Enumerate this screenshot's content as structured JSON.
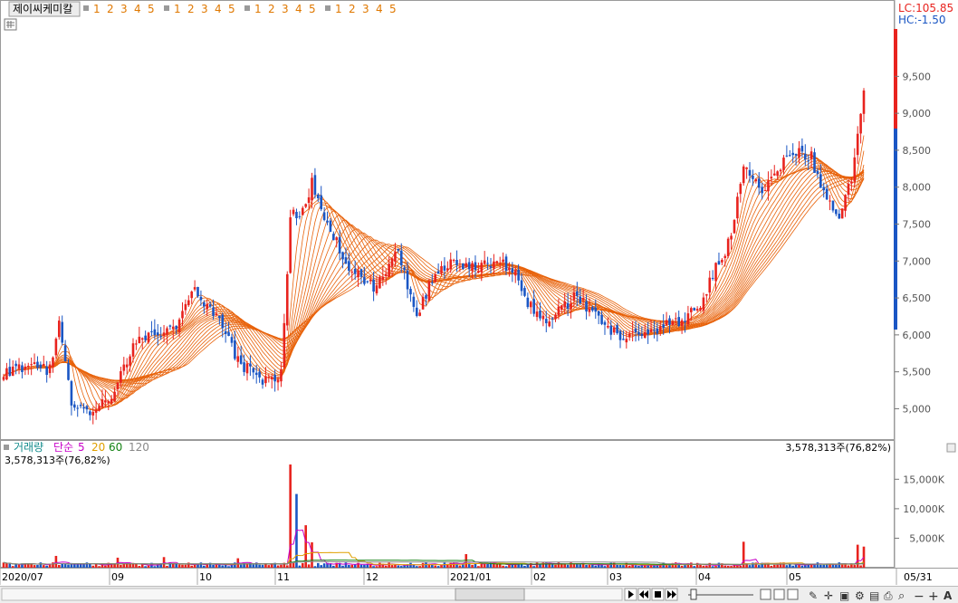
{
  "header": {
    "stock_name": "제이씨케미칼",
    "indicator_groups": [
      [
        "1",
        "2",
        "3",
        "4",
        "5"
      ],
      [
        "1",
        "2",
        "3",
        "4",
        "5"
      ],
      [
        "1",
        "2",
        "3",
        "4",
        "5"
      ],
      [
        "1",
        "2",
        "3",
        "4",
        "5"
      ]
    ],
    "lc_label": "LC:105.85",
    "hc_label": "HC:-1.50"
  },
  "volume_panel": {
    "title": "거래량",
    "ma_label": "단순",
    "ma_periods": [
      "5",
      "20",
      "60",
      "120"
    ],
    "current_left": "3,578,313주(76,82%)",
    "current_right": "3,578,313주(76,82%)"
  },
  "colors": {
    "up": "#e8231e",
    "down": "#1a56c4",
    "ribbon": "#e8620a",
    "ma5": "#c800c8",
    "ma20": "#e0a000",
    "ma60": "#148214",
    "ma120": "#888888",
    "lc": "#e8231e",
    "hc": "#1a56c4"
  },
  "chart_data": {
    "type": "candlestick",
    "price_axis": {
      "ticks": [
        5000,
        5500,
        6000,
        6500,
        7000,
        7500,
        8000,
        8500,
        9000,
        9500
      ],
      "tick_labels": [
        "5,000",
        "5,500",
        "6,000",
        "6,500",
        "7,000",
        "7,500",
        "8,000",
        "8,500",
        "9,000",
        "9,500"
      ],
      "range": [
        4650,
        10350
      ]
    },
    "volume_axis": {
      "ticks": [
        5000000,
        10000000,
        15000000
      ],
      "tick_labels": [
        "5,000K",
        "10,000K",
        "15,000K"
      ],
      "range": [
        0,
        19500000
      ]
    },
    "x_labels": [
      "2020/07",
      "09",
      "10",
      "11",
      "12",
      "2021/01",
      "02",
      "03",
      "04",
      "05",
      "05/31"
    ],
    "anchors": [
      [
        0,
        5500
      ],
      [
        10,
        5560
      ],
      [
        15,
        5520
      ],
      [
        18,
        6250
      ],
      [
        22,
        5000
      ],
      [
        28,
        4920
      ],
      [
        35,
        5200
      ],
      [
        43,
        5900
      ],
      [
        55,
        6050
      ],
      [
        62,
        6600
      ],
      [
        70,
        6200
      ],
      [
        76,
        5650
      ],
      [
        83,
        5400
      ],
      [
        90,
        5450
      ],
      [
        93,
        7600
      ],
      [
        98,
        7700
      ],
      [
        100,
        8100
      ],
      [
        105,
        7500
      ],
      [
        112,
        6900
      ],
      [
        120,
        6650
      ],
      [
        128,
        7150
      ],
      [
        134,
        6250
      ],
      [
        140,
        6850
      ],
      [
        146,
        7050
      ],
      [
        152,
        6900
      ],
      [
        160,
        7000
      ],
      [
        166,
        6900
      ],
      [
        170,
        6450
      ],
      [
        175,
        6200
      ],
      [
        180,
        6300
      ],
      [
        186,
        6550
      ],
      [
        190,
        6350
      ],
      [
        196,
        6100
      ],
      [
        202,
        5950
      ],
      [
        208,
        6050
      ],
      [
        214,
        6100
      ],
      [
        220,
        6200
      ],
      [
        226,
        6450
      ],
      [
        231,
        6900
      ],
      [
        236,
        7300
      ],
      [
        240,
        8300
      ],
      [
        246,
        7900
      ],
      [
        250,
        8200
      ],
      [
        256,
        8500
      ],
      [
        262,
        8400
      ],
      [
        266,
        7900
      ],
      [
        271,
        7650
      ],
      [
        275,
        8100
      ],
      [
        279,
        9300
      ]
    ],
    "volume_spikes": [
      [
        17,
        2000000
      ],
      [
        37,
        1700000
      ],
      [
        52,
        1800000
      ],
      [
        76,
        1600000
      ],
      [
        93,
        17500000
      ],
      [
        95,
        12500000
      ],
      [
        98,
        7200000
      ],
      [
        100,
        4300000
      ],
      [
        150,
        2300000
      ],
      [
        240,
        4400000
      ],
      [
        277,
        3900000
      ],
      [
        279,
        3578313
      ]
    ]
  }
}
